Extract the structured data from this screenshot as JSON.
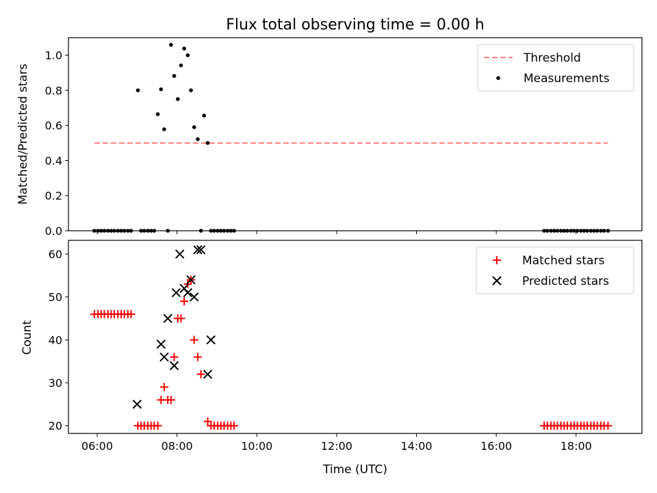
{
  "chart_data": [
    {
      "type": "scatter",
      "title": "Flux total observing time = 0.00 h",
      "xlabel": "",
      "ylabel": "Matched/Predicted stars",
      "xlim": [
        5.28,
        19.65
      ],
      "ylim": [
        0.0,
        1.1
      ],
      "y_ticks": [
        0.0,
        0.2,
        0.4,
        0.6,
        0.8,
        1.0
      ],
      "y_tick_labels": [
        "0.0",
        "0.2",
        "0.4",
        "0.6",
        "0.8",
        "1.0"
      ],
      "legend_position": "upper right",
      "series": [
        {
          "name": "Threshold",
          "kind": "line",
          "style": "dashed",
          "color": "#ff7f7f",
          "x": [
            5.93,
            18.8
          ],
          "y": [
            0.5,
            0.5
          ]
        },
        {
          "name": "Measurements",
          "kind": "scatter",
          "marker": "dot",
          "color": "#000000",
          "x": [
            5.93,
            6.02,
            6.1,
            6.18,
            6.27,
            6.35,
            6.43,
            6.52,
            6.6,
            6.68,
            6.77,
            6.85,
            7.02,
            7.1,
            7.18,
            7.27,
            7.35,
            7.43,
            7.52,
            7.6,
            7.68,
            7.77,
            7.85,
            7.93,
            8.02,
            8.1,
            8.18,
            8.27,
            8.35,
            8.43,
            8.52,
            8.6,
            8.68,
            8.77,
            8.85,
            8.93,
            9.02,
            9.1,
            9.18,
            9.27,
            9.35,
            9.43,
            17.2,
            17.28,
            17.37,
            17.45,
            17.53,
            17.62,
            17.7,
            17.78,
            17.87,
            17.95,
            18.03,
            18.12,
            18.2,
            18.28,
            18.37,
            18.45,
            18.53,
            18.62,
            18.7,
            18.8
          ],
          "y": [
            0,
            0,
            0,
            0,
            0,
            0,
            0,
            0,
            0,
            0,
            0,
            0,
            0.8,
            0,
            0,
            0,
            0,
            0,
            0.664,
            0.806,
            0.578,
            0,
            1.059,
            0.882,
            0.75,
            0.942,
            1.038,
            1.0,
            0.8,
            0.59,
            0.522,
            0,
            0.656,
            0.5,
            0,
            0,
            0,
            0,
            0,
            0,
            0,
            0,
            0,
            0,
            0,
            0,
            0,
            0,
            0,
            0,
            0,
            0,
            0,
            0,
            0,
            0,
            0,
            0,
            0,
            0,
            0,
            0
          ]
        }
      ]
    },
    {
      "type": "scatter",
      "title": "",
      "xlabel": "Time (UTC)",
      "ylabel": "Count",
      "xlim": [
        5.28,
        19.65
      ],
      "ylim": [
        18.2,
        63.2
      ],
      "x_ticks": [
        6,
        8,
        10,
        12,
        14,
        16,
        18
      ],
      "x_tick_labels": [
        "06:00",
        "08:00",
        "10:00",
        "12:00",
        "14:00",
        "16:00",
        "18:00"
      ],
      "y_ticks": [
        20,
        30,
        40,
        50,
        60
      ],
      "y_tick_labels": [
        "20",
        "30",
        "40",
        "50",
        "60"
      ],
      "legend_position": "upper right",
      "series": [
        {
          "name": "Matched stars",
          "kind": "scatter",
          "marker": "plus",
          "color": "#ff0000",
          "x": [
            5.93,
            6.02,
            6.1,
            6.18,
            6.27,
            6.35,
            6.43,
            6.52,
            6.6,
            6.68,
            6.77,
            6.85,
            7.02,
            7.1,
            7.18,
            7.27,
            7.35,
            7.43,
            7.52,
            7.6,
            7.68,
            7.77,
            7.85,
            7.93,
            8.02,
            8.1,
            8.18,
            8.27,
            8.35,
            8.43,
            8.52,
            8.6,
            8.77,
            8.85,
            8.93,
            9.02,
            9.1,
            9.18,
            9.27,
            9.35,
            9.43,
            17.2,
            17.28,
            17.37,
            17.45,
            17.53,
            17.62,
            17.7,
            17.78,
            17.87,
            17.95,
            18.03,
            18.12,
            18.2,
            18.28,
            18.37,
            18.45,
            18.53,
            18.62,
            18.7,
            18.8
          ],
          "y": [
            46,
            46,
            46,
            46,
            46,
            46,
            46,
            46,
            46,
            46,
            46,
            46,
            20,
            20,
            20,
            20,
            20,
            20,
            20,
            26,
            29,
            26,
            26,
            36,
            45,
            45,
            49,
            53,
            54,
            40,
            36,
            32,
            21,
            20,
            20,
            20,
            20,
            20,
            20,
            20,
            20,
            20,
            20,
            20,
            20,
            20,
            20,
            20,
            20,
            20,
            20,
            20,
            20,
            20,
            20,
            20,
            20,
            20,
            20,
            20,
            20
          ]
        },
        {
          "name": "Predicted stars",
          "kind": "scatter",
          "marker": "x",
          "color": "#000000",
          "x": [
            7.0,
            7.6,
            7.68,
            7.77,
            7.93,
            7.98,
            8.07,
            8.18,
            8.27,
            8.35,
            8.43,
            8.52,
            8.6,
            8.77,
            8.85
          ],
          "y": [
            25,
            39,
            36,
            45,
            34,
            51,
            60,
            52,
            51,
            54,
            50,
            61,
            61,
            32,
            40
          ]
        }
      ]
    }
  ]
}
